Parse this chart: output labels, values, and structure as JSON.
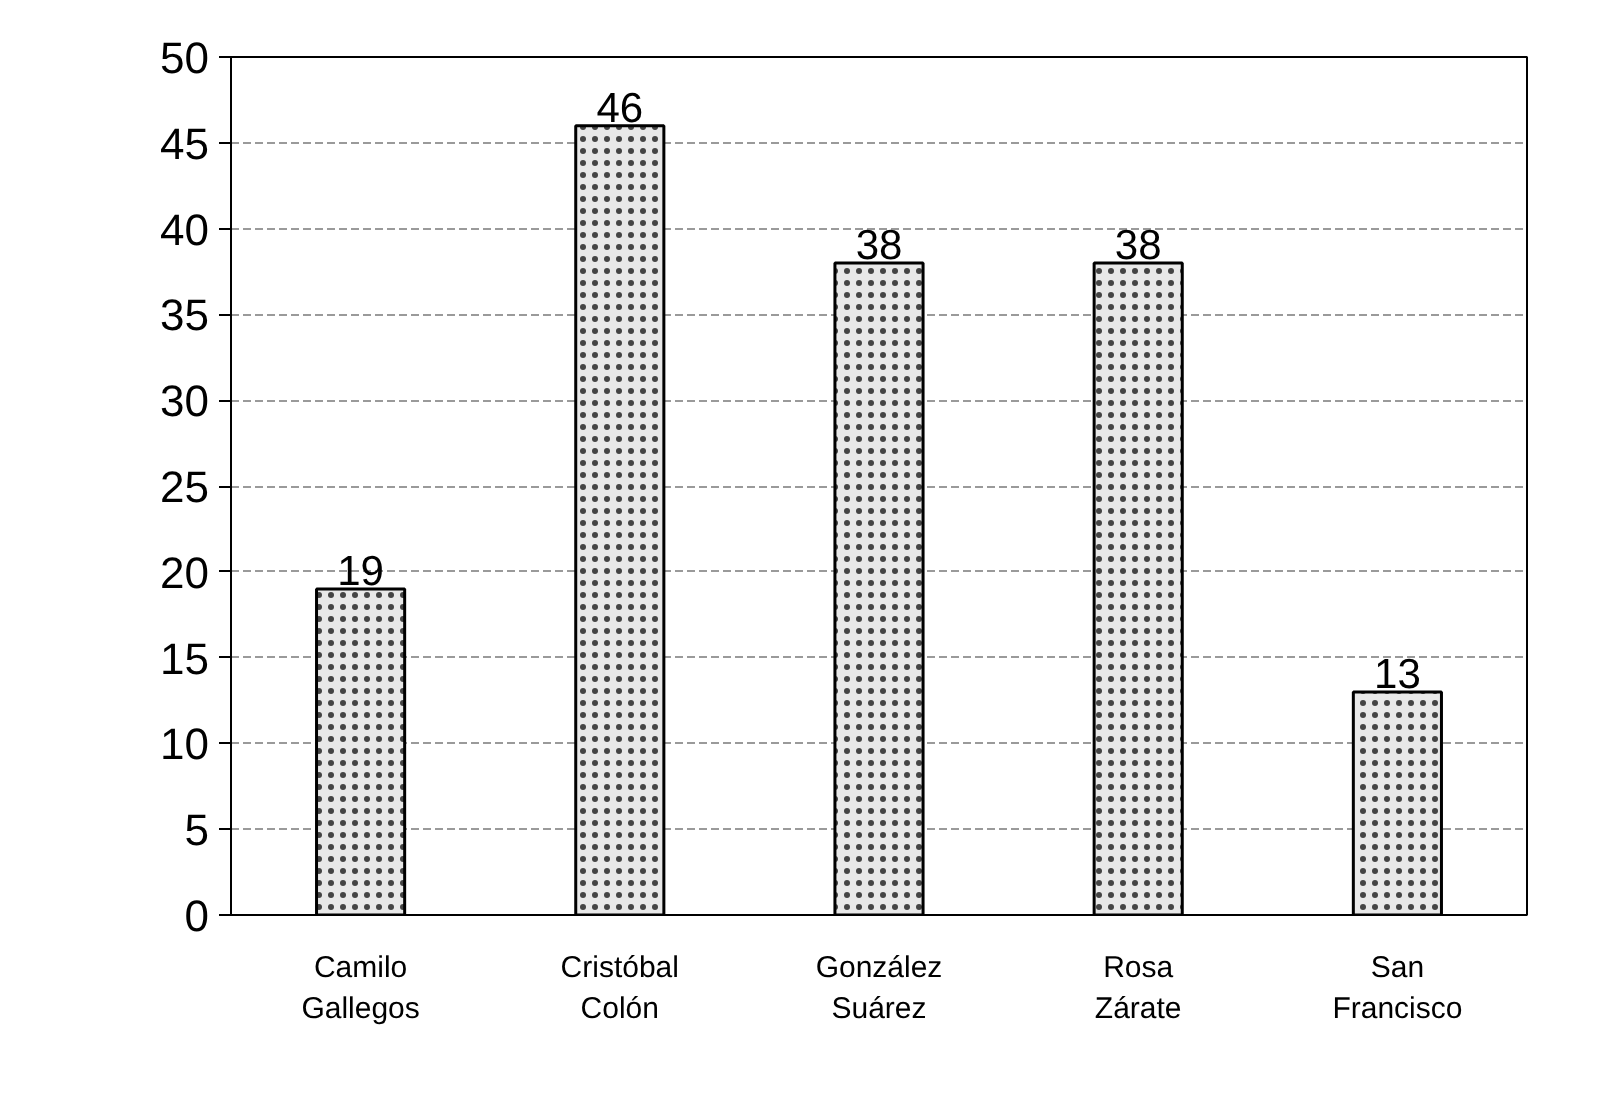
{
  "chart_data": {
    "type": "bar",
    "categories": [
      "Camilo Gallegos",
      "Cristóbal Colón",
      "González Suárez",
      "Rosa Zárate",
      "San Francisco"
    ],
    "values": [
      19,
      46,
      38,
      38,
      13
    ],
    "color": "#e8e8e8",
    "ylim": [
      0,
      50
    ],
    "yticks": [
      0,
      5,
      10,
      15,
      20,
      25,
      30,
      35,
      40,
      45,
      50
    ],
    "grid": "y",
    "data_labels": true
  }
}
